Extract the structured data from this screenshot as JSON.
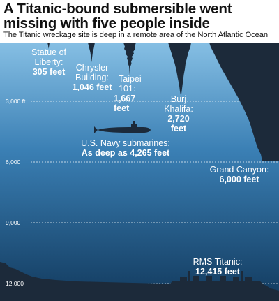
{
  "headline": "A Titanic-bound submersible went missing with five people inside",
  "subheadline": "The Titanic wreckage site is deep in a remote area of the North Atlantic Ocean",
  "colors": {
    "ocean_top": "#86bfe4",
    "ocean_mid": "#3a7fb4",
    "ocean_bottom": "#123a5e",
    "silhouette": "#1c2a3a"
  },
  "depth_ticks": [
    {
      "label": "3,000 ft",
      "value": 3000
    },
    {
      "label": "6,000",
      "value": 6000
    },
    {
      "label": "9,000",
      "value": 9000
    },
    {
      "label": "12,000",
      "value": 12000
    }
  ],
  "labels": {
    "statue": {
      "name_line1": "Statue of",
      "name_line2": "Liberty:",
      "value": "305 feet",
      "depth": 305
    },
    "chrysler": {
      "name_line1": "Chrysler",
      "name_line2": "Building:",
      "value": "1,046 feet",
      "depth": 1046
    },
    "taipei": {
      "name_line1": "Taipei",
      "name_line2": "101:",
      "value": "1,667 feet",
      "depth": 1667
    },
    "burj": {
      "name_line1": "Burj",
      "name_line2": "Khalifa:",
      "value": "2,720 feet",
      "depth": 2720
    },
    "submarine": {
      "name": "U.S. Navy submarines:",
      "value": "As deep as 4,265 feet",
      "depth": 4265
    },
    "canyon": {
      "name": "Grand Canyon:",
      "value": "6,000 feet",
      "depth": 6000
    },
    "titanic": {
      "name": "RMS Titanic:",
      "value": "12,415 feet",
      "depth": 12415
    }
  }
}
